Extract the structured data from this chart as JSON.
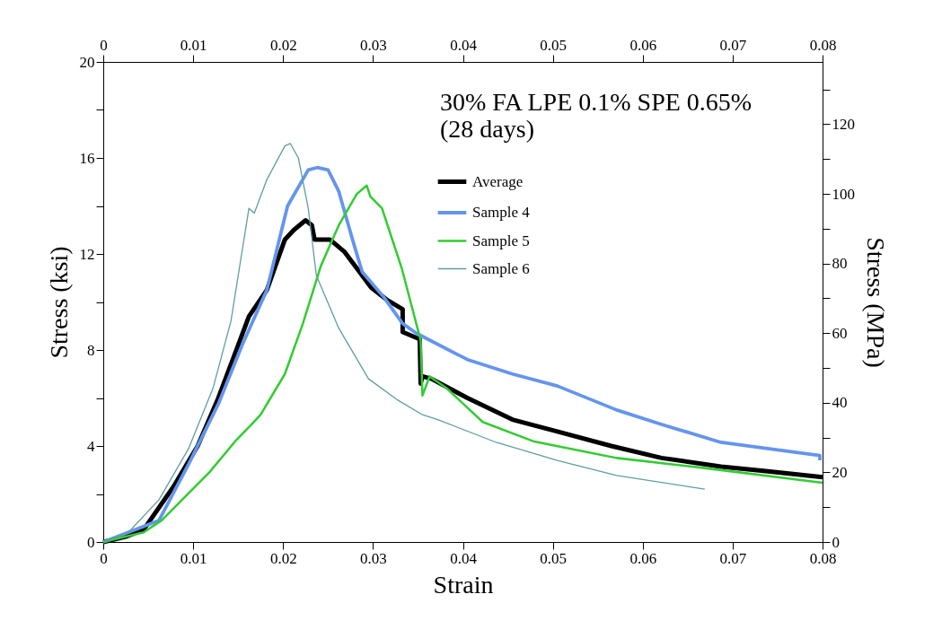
{
  "chart_data": {
    "type": "line",
    "title": "30% FA LPE 0.1% SPE 0.65%",
    "subtitle": "(28 days)",
    "xlabel": "Strain",
    "ylabel": "Stress (ksi)",
    "y2label": "Stress (MPa)",
    "xlim": [
      0,
      0.08
    ],
    "xticks": [
      0,
      0.01,
      0.02,
      0.03,
      0.04,
      0.05,
      0.06,
      0.07,
      0.08
    ],
    "x2lim": [
      0,
      0.08
    ],
    "x2ticks": [
      0,
      0.01,
      0.02,
      0.03,
      0.04,
      0.05,
      0.06,
      0.07,
      0.08
    ],
    "ylim": [
      0,
      20
    ],
    "yticks": [
      0,
      {
        "value": 2,
        "label": null
      },
      4,
      {
        "value": 6,
        "label": null
      },
      8,
      {
        "value": 10,
        "label": null
      },
      12,
      {
        "value": 14,
        "label": null
      },
      16,
      {
        "value": 18,
        "label": null
      },
      20
    ],
    "y2lim": [
      0,
      137.9
    ],
    "y2ticks": [
      0,
      {
        "value": 10,
        "label": null
      },
      20,
      {
        "value": 30,
        "label": null
      },
      40,
      {
        "value": 50,
        "label": null
      },
      60,
      {
        "value": 70,
        "label": null
      },
      80,
      {
        "value": 90,
        "label": null
      },
      100,
      {
        "value": 110,
        "label": null
      },
      120,
      {
        "value": 130,
        "label": null
      }
    ],
    "grid": false,
    "legend": "top right",
    "marker": "none",
    "line_style": "solid",
    "series": [
      {
        "name": "Average",
        "color": "#000000",
        "x": [
          0,
          0.0025,
          0.0045,
          0.0078,
          0.0105,
          0.0128,
          0.0145,
          0.0162,
          0.0182,
          0.0202,
          0.0212,
          0.0225,
          0.0232,
          0.0235,
          0.0252,
          0.0268,
          0.0282,
          0.0298,
          0.0315,
          0.0333,
          0.0333,
          0.0352,
          0.0353,
          0.0355,
          0.0365,
          0.0405,
          0.0455,
          0.0505,
          0.0565,
          0.0621,
          0.0687,
          0.0737,
          0.08
        ],
        "values": [
          0,
          0.22,
          0.52,
          2.3,
          4.0,
          6.0,
          7.7,
          9.4,
          10.5,
          12.6,
          13.0,
          13.4,
          13.2,
          12.6,
          12.6,
          12.1,
          11.4,
          10.6,
          10.1,
          9.7,
          8.75,
          8.45,
          6.6,
          6.9,
          6.8,
          6.0,
          5.1,
          4.6,
          4.0,
          3.5,
          3.14,
          2.95,
          2.7
        ]
      },
      {
        "name": "Sample 4",
        "color": "#6495ed",
        "x": [
          0,
          0.0062,
          0.0095,
          0.0128,
          0.0155,
          0.0182,
          0.0205,
          0.0228,
          0.0238,
          0.025,
          0.0262,
          0.0278,
          0.0288,
          0.0312,
          0.0333,
          0.0348,
          0.0405,
          0.0455,
          0.0505,
          0.0571,
          0.0621,
          0.0687,
          0.0737,
          0.0797,
          0.0797
        ],
        "values": [
          0,
          0.9,
          3.25,
          5.75,
          8.25,
          10.5,
          14.0,
          15.5,
          15.6,
          15.5,
          14.6,
          12.5,
          11.25,
          10.2,
          9.1,
          8.7,
          7.6,
          7.0,
          6.5,
          5.5,
          4.9,
          4.15,
          3.9,
          3.6,
          3.4
        ]
      },
      {
        "name": "Sample 5",
        "color": "#33cc33",
        "x": [
          0,
          0.0045,
          0.0065,
          0.0118,
          0.0148,
          0.0165,
          0.0175,
          0.0202,
          0.0222,
          0.0242,
          0.0262,
          0.0282,
          0.0293,
          0.0297,
          0.031,
          0.0332,
          0.0353,
          0.0355,
          0.0363,
          0.0382,
          0.0422,
          0.0478,
          0.0571,
          0.0671,
          0.08
        ],
        "values": [
          0,
          0.4,
          0.9,
          2.9,
          4.25,
          4.9,
          5.3,
          7.0,
          9.1,
          11.5,
          13.2,
          14.5,
          14.85,
          14.4,
          13.9,
          11.4,
          8.4,
          6.1,
          6.9,
          6.4,
          5.0,
          4.2,
          3.5,
          3.07,
          2.47
        ]
      },
      {
        "name": "Sample 6",
        "color": "#5f9ea0",
        "x": [
          0,
          0.0028,
          0.0062,
          0.0095,
          0.0122,
          0.0142,
          0.0162,
          0.0168,
          0.0182,
          0.0202,
          0.0208,
          0.0217,
          0.0228,
          0.0237,
          0.0262,
          0.0295,
          0.0328,
          0.0355,
          0.0372,
          0.0437,
          0.0505,
          0.0571,
          0.0669
        ],
        "values": [
          0,
          0.4,
          1.76,
          3.9,
          6.4,
          9.2,
          13.9,
          13.7,
          15.1,
          16.5,
          16.6,
          16.0,
          13.9,
          11.1,
          8.9,
          6.8,
          5.9,
          5.3,
          5.1,
          4.15,
          3.4,
          2.77,
          2.2
        ]
      }
    ]
  }
}
